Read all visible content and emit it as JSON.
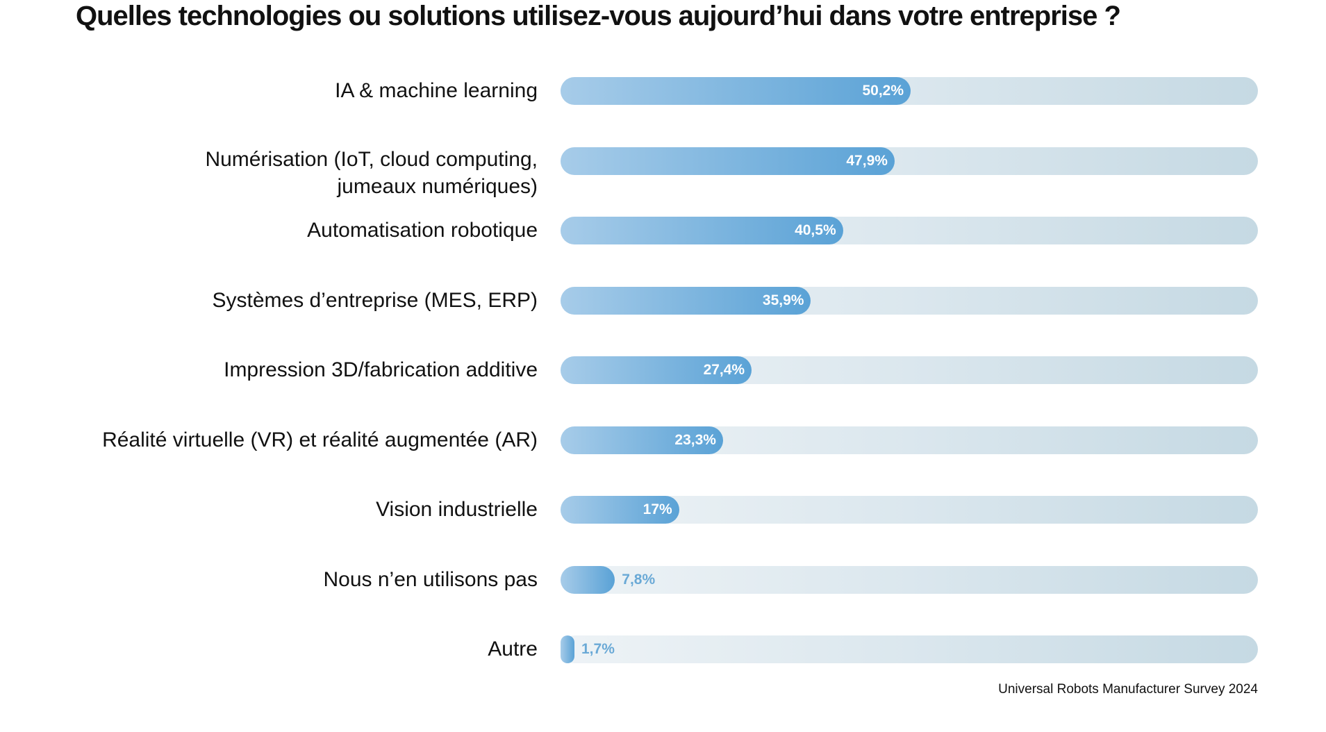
{
  "chart_data": {
    "type": "bar",
    "orientation": "horizontal",
    "title": "Quelles technologies ou solutions utilisez-vous aujourd’hui dans votre entreprise ?",
    "categories": [
      "IA & machine learning",
      "Numérisation (IoT, cloud computing,\njumeaux numériques)",
      "Automatisation robotique",
      "Systèmes d’entreprise (MES, ERP)",
      "Impression 3D/fabrication additive",
      "Réalité virtuelle (VR) et réalité augmentée (AR)",
      "Vision industrielle",
      "Nous n’en utilisons pas",
      "Autre"
    ],
    "values": [
      50.2,
      47.9,
      40.5,
      35.9,
      27.4,
      23.3,
      17,
      7.8,
      1.7
    ],
    "value_labels": [
      "50,2%",
      "47,9%",
      "40,5%",
      "35,9%",
      "27,4%",
      "23,3%",
      "17%",
      "7,8%",
      "1,7%"
    ],
    "xlim": [
      0,
      100
    ],
    "grid": false,
    "source": "Universal Robots Manufacturer Survey 2024",
    "colors": {
      "bar_start": "#a7cce9",
      "bar_end": "#5aa2d6",
      "track_start": "#eef3f6",
      "track_end": "#c5d9e3",
      "outside_label": "#6aa9d6"
    }
  }
}
